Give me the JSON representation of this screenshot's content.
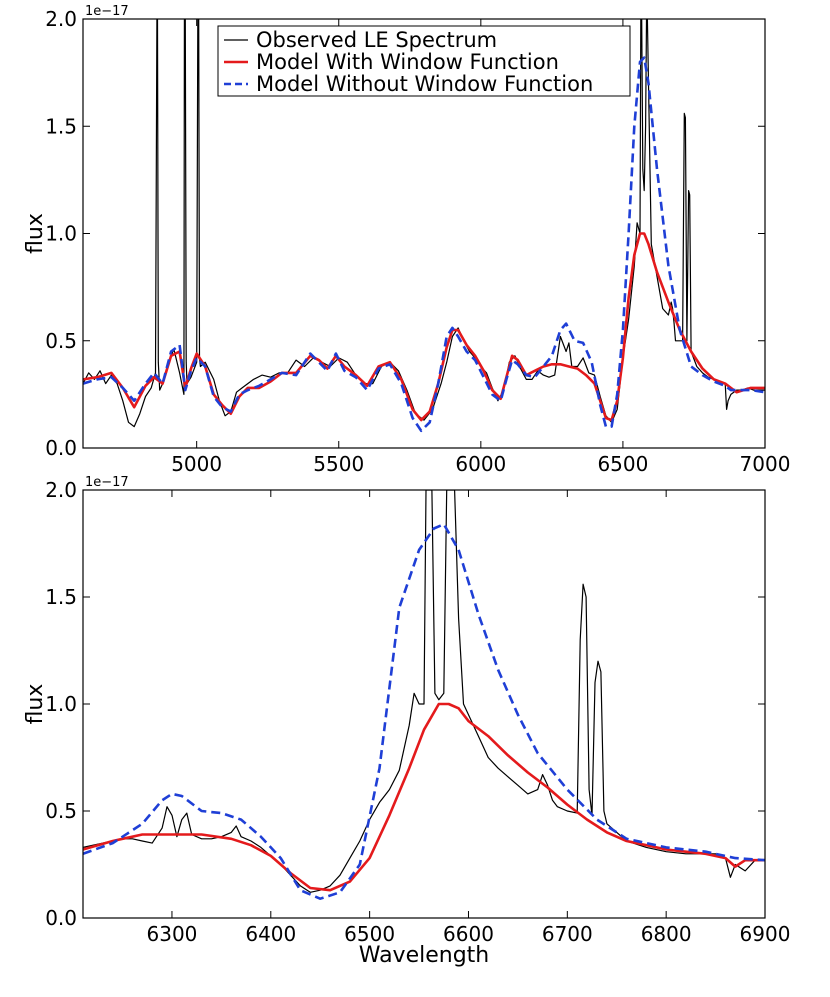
{
  "chart_data": [
    {
      "type": "line",
      "title": "",
      "ylabel": "flux",
      "xlabel": "",
      "y_scale_label": "1e−17",
      "xlim": [
        4600,
        7000
      ],
      "ylim": [
        0.0,
        2.0
      ],
      "xticks": [
        5000,
        5500,
        6000,
        6500,
        7000
      ],
      "yticks": [
        0.0,
        0.5,
        1.0,
        1.5,
        2.0
      ],
      "ytick_labels": [
        "0.0",
        "0.5",
        "1.0",
        "1.5",
        "2.0"
      ],
      "legend": {
        "position": "top-center",
        "entries": [
          "Observed LE Spectrum",
          "Model With Window Function",
          "Model Without Window Function"
        ]
      },
      "series": [
        {
          "name": "Observed LE Spectrum",
          "style": "thin-solid",
          "color": "#000000",
          "x": [
            4600,
            4620,
            4640,
            4660,
            4680,
            4700,
            4720,
            4740,
            4760,
            4780,
            4800,
            4820,
            4840,
            4855,
            4860,
            4862,
            4865,
            4870,
            4880,
            4900,
            4920,
            4940,
            4955,
            4957,
            4960,
            4963,
            4966,
            4980,
            5000,
            5004,
            5007,
            5010,
            5013,
            5030,
            5060,
            5080,
            5100,
            5120,
            5140,
            5160,
            5180,
            5200,
            5230,
            5260,
            5290,
            5320,
            5350,
            5380,
            5410,
            5440,
            5470,
            5500,
            5530,
            5560,
            5590,
            5620,
            5650,
            5680,
            5710,
            5740,
            5770,
            5800,
            5830,
            5860,
            5880,
            5900,
            5920,
            5940,
            5960,
            5980,
            6000,
            6020,
            6040,
            6060,
            6080,
            6100,
            6120,
            6140,
            6160,
            6180,
            6200,
            6220,
            6240,
            6260,
            6280,
            6300,
            6310,
            6320,
            6340,
            6360,
            6380,
            6400,
            6420,
            6440,
            6460,
            6480,
            6500,
            6520,
            6540,
            6550,
            6560,
            6563,
            6566,
            6570,
            6575,
            6580,
            6583,
            6586,
            6590,
            6600,
            6620,
            6640,
            6660,
            6670,
            6675,
            6680,
            6685,
            6700,
            6710,
            6716,
            6720,
            6725,
            6731,
            6735,
            6740,
            6760,
            6780,
            6800,
            6820,
            6840,
            6860,
            6865,
            6870,
            6880,
            6900,
            6920,
            6940,
            6960,
            6980,
            7000
          ],
          "y": [
            0.3,
            0.35,
            0.32,
            0.36,
            0.3,
            0.34,
            0.3,
            0.22,
            0.12,
            0.1,
            0.16,
            0.24,
            0.28,
            0.35,
            2.0,
            2.0,
            0.4,
            0.27,
            0.3,
            0.4,
            0.46,
            0.35,
            0.25,
            2.0,
            2.0,
            0.4,
            0.3,
            0.33,
            0.4,
            2.0,
            2.0,
            0.42,
            0.38,
            0.4,
            0.32,
            0.22,
            0.15,
            0.17,
            0.26,
            0.28,
            0.3,
            0.32,
            0.34,
            0.33,
            0.35,
            0.35,
            0.41,
            0.38,
            0.42,
            0.4,
            0.38,
            0.42,
            0.4,
            0.34,
            0.3,
            0.3,
            0.38,
            0.4,
            0.36,
            0.27,
            0.16,
            0.13,
            0.18,
            0.3,
            0.4,
            0.52,
            0.56,
            0.5,
            0.45,
            0.42,
            0.38,
            0.35,
            0.28,
            0.22,
            0.27,
            0.4,
            0.43,
            0.37,
            0.32,
            0.32,
            0.36,
            0.34,
            0.33,
            0.34,
            0.52,
            0.45,
            0.49,
            0.38,
            0.38,
            0.42,
            0.35,
            0.34,
            0.24,
            0.15,
            0.12,
            0.18,
            0.42,
            0.6,
            0.85,
            1.05,
            1.0,
            2.0,
            2.0,
            1.3,
            1.2,
            1.5,
            2.0,
            2.0,
            1.7,
            0.95,
            0.8,
            0.65,
            0.62,
            0.68,
            0.65,
            0.58,
            0.5,
            0.5,
            0.5,
            1.56,
            1.54,
            0.5,
            1.2,
            1.18,
            0.45,
            0.38,
            0.35,
            0.33,
            0.32,
            0.31,
            0.3,
            0.18,
            0.22,
            0.25,
            0.27,
            0.27,
            0.28,
            0.27,
            0.27,
            0.27
          ]
        },
        {
          "name": "Model With Window Function",
          "style": "thick-solid",
          "color": "#e41a1c",
          "x": [
            4600,
            4650,
            4700,
            4740,
            4780,
            4820,
            4850,
            4880,
            4910,
            4940,
            4960,
            4980,
            5000,
            5030,
            5060,
            5090,
            5120,
            5150,
            5180,
            5220,
            5260,
            5300,
            5350,
            5400,
            5430,
            5460,
            5490,
            5520,
            5560,
            5600,
            5640,
            5680,
            5720,
            5760,
            5790,
            5820,
            5850,
            5880,
            5900,
            5920,
            5950,
            5980,
            6010,
            6040,
            6070,
            6090,
            6110,
            6130,
            6160,
            6190,
            6220,
            6250,
            6280,
            6310,
            6340,
            6370,
            6400,
            6420,
            6440,
            6460,
            6480,
            6500,
            6520,
            6540,
            6560,
            6575,
            6590,
            6620,
            6660,
            6700,
            6740,
            6780,
            6820,
            6860,
            6880,
            6900,
            6950,
            7000
          ],
          "y": [
            0.32,
            0.33,
            0.35,
            0.28,
            0.19,
            0.29,
            0.33,
            0.3,
            0.43,
            0.45,
            0.28,
            0.37,
            0.44,
            0.38,
            0.25,
            0.2,
            0.16,
            0.24,
            0.28,
            0.28,
            0.31,
            0.35,
            0.35,
            0.43,
            0.41,
            0.37,
            0.43,
            0.38,
            0.34,
            0.29,
            0.38,
            0.4,
            0.32,
            0.18,
            0.13,
            0.17,
            0.3,
            0.47,
            0.55,
            0.55,
            0.48,
            0.43,
            0.36,
            0.27,
            0.23,
            0.33,
            0.43,
            0.41,
            0.34,
            0.36,
            0.38,
            0.39,
            0.39,
            0.38,
            0.37,
            0.34,
            0.3,
            0.22,
            0.14,
            0.13,
            0.22,
            0.42,
            0.7,
            0.9,
            1.0,
            1.0,
            0.95,
            0.82,
            0.68,
            0.55,
            0.45,
            0.37,
            0.32,
            0.3,
            0.28,
            0.26,
            0.28,
            0.28
          ]
        },
        {
          "name": "Model Without Window Function",
          "style": "thick-dashed",
          "color": "#1f3fd6",
          "x": [
            4600,
            4650,
            4700,
            4740,
            4780,
            4820,
            4850,
            4880,
            4910,
            4940,
            4960,
            4980,
            5000,
            5030,
            5060,
            5090,
            5120,
            5150,
            5180,
            5220,
            5260,
            5300,
            5350,
            5400,
            5430,
            5460,
            5490,
            5520,
            5560,
            5600,
            5640,
            5680,
            5720,
            5760,
            5790,
            5820,
            5850,
            5880,
            5900,
            5920,
            5950,
            5980,
            6010,
            6040,
            6070,
            6090,
            6110,
            6130,
            6160,
            6190,
            6220,
            6250,
            6280,
            6300,
            6330,
            6360,
            6390,
            6420,
            6440,
            6460,
            6480,
            6500,
            6520,
            6540,
            6560,
            6575,
            6590,
            6620,
            6660,
            6700,
            6740,
            6780,
            6820,
            6860,
            6880,
            6900,
            6950,
            7000
          ],
          "y": [
            0.3,
            0.32,
            0.33,
            0.28,
            0.22,
            0.3,
            0.35,
            0.3,
            0.45,
            0.48,
            0.27,
            0.36,
            0.42,
            0.38,
            0.24,
            0.19,
            0.17,
            0.25,
            0.27,
            0.29,
            0.32,
            0.35,
            0.34,
            0.44,
            0.4,
            0.36,
            0.44,
            0.36,
            0.33,
            0.27,
            0.37,
            0.39,
            0.3,
            0.14,
            0.08,
            0.12,
            0.3,
            0.52,
            0.56,
            0.52,
            0.45,
            0.41,
            0.33,
            0.25,
            0.22,
            0.32,
            0.41,
            0.39,
            0.34,
            0.33,
            0.38,
            0.43,
            0.55,
            0.58,
            0.5,
            0.49,
            0.4,
            0.2,
            0.1,
            0.1,
            0.25,
            0.55,
            1.0,
            1.5,
            1.8,
            1.82,
            1.7,
            1.3,
            0.85,
            0.55,
            0.38,
            0.34,
            0.31,
            0.29,
            0.27,
            0.27,
            0.27,
            0.26
          ]
        }
      ]
    },
    {
      "type": "line",
      "title": "",
      "ylabel": "flux",
      "xlabel": "Wavelength",
      "y_scale_label": "1e−17",
      "xlim": [
        6210,
        6900
      ],
      "ylim": [
        0.0,
        2.0
      ],
      "xticks": [
        6300,
        6400,
        6500,
        6600,
        6700,
        6800,
        6900
      ],
      "yticks": [
        0.0,
        0.5,
        1.0,
        1.5,
        2.0
      ],
      "ytick_labels": [
        "0.0",
        "0.5",
        "1.0",
        "1.5",
        "2.0"
      ],
      "series": [
        {
          "name": "Observed LE Spectrum",
          "style": "thin-solid",
          "color": "#000000",
          "x": [
            6210,
            6230,
            6250,
            6260,
            6270,
            6280,
            6290,
            6295,
            6300,
            6305,
            6310,
            6315,
            6320,
            6330,
            6340,
            6350,
            6360,
            6365,
            6370,
            6380,
            6390,
            6400,
            6410,
            6420,
            6430,
            6440,
            6450,
            6460,
            6470,
            6480,
            6490,
            6500,
            6510,
            6520,
            6530,
            6540,
            6545,
            6550,
            6555,
            6557,
            6560,
            6563,
            6566,
            6570,
            6575,
            6578,
            6580,
            6583,
            6586,
            6590,
            6595,
            6600,
            6610,
            6620,
            6630,
            6640,
            6650,
            6660,
            6670,
            6675,
            6680,
            6685,
            6690,
            6700,
            6710,
            6713,
            6716,
            6719,
            6722,
            6725,
            6728,
            6731,
            6734,
            6737,
            6740,
            6760,
            6780,
            6800,
            6820,
            6840,
            6850,
            6860,
            6865,
            6870,
            6880,
            6890,
            6900
          ],
          "y": [
            0.33,
            0.35,
            0.37,
            0.37,
            0.36,
            0.35,
            0.42,
            0.52,
            0.48,
            0.38,
            0.46,
            0.49,
            0.39,
            0.37,
            0.37,
            0.38,
            0.4,
            0.43,
            0.38,
            0.36,
            0.33,
            0.29,
            0.25,
            0.2,
            0.15,
            0.12,
            0.13,
            0.15,
            0.2,
            0.28,
            0.36,
            0.46,
            0.54,
            0.6,
            0.69,
            0.9,
            1.05,
            1.0,
            1.0,
            2.0,
            2.0,
            2.0,
            1.05,
            1.02,
            1.05,
            2.0,
            2.0,
            2.0,
            2.0,
            1.4,
            1.0,
            0.95,
            0.85,
            0.75,
            0.7,
            0.66,
            0.62,
            0.58,
            0.6,
            0.67,
            0.62,
            0.55,
            0.52,
            0.5,
            0.49,
            1.3,
            1.56,
            1.5,
            0.6,
            0.48,
            1.1,
            1.2,
            1.15,
            0.5,
            0.44,
            0.36,
            0.33,
            0.31,
            0.3,
            0.3,
            0.3,
            0.28,
            0.19,
            0.25,
            0.22,
            0.27,
            0.27
          ]
        },
        {
          "name": "Model With Window Function",
          "style": "thick-solid",
          "color": "#e41a1c",
          "x": [
            6210,
            6240,
            6270,
            6300,
            6330,
            6360,
            6380,
            6400,
            6420,
            6440,
            6460,
            6480,
            6500,
            6520,
            6540,
            6555,
            6570,
            6580,
            6590,
            6600,
            6620,
            6640,
            6660,
            6680,
            6700,
            6720,
            6740,
            6760,
            6780,
            6800,
            6820,
            6840,
            6860,
            6870,
            6880,
            6900
          ],
          "y": [
            0.32,
            0.36,
            0.39,
            0.39,
            0.39,
            0.37,
            0.34,
            0.29,
            0.21,
            0.14,
            0.13,
            0.17,
            0.28,
            0.48,
            0.7,
            0.88,
            1.0,
            1.0,
            0.98,
            0.92,
            0.85,
            0.76,
            0.68,
            0.61,
            0.53,
            0.46,
            0.4,
            0.36,
            0.34,
            0.32,
            0.31,
            0.3,
            0.28,
            0.24,
            0.27,
            0.27
          ]
        },
        {
          "name": "Model Without Window Function",
          "style": "thick-dashed",
          "color": "#1f3fd6",
          "x": [
            6210,
            6240,
            6270,
            6290,
            6300,
            6310,
            6330,
            6350,
            6370,
            6390,
            6410,
            6430,
            6450,
            6470,
            6490,
            6510,
            6530,
            6550,
            6565,
            6575,
            6590,
            6610,
            6630,
            6650,
            6670,
            6700,
            6730,
            6760,
            6800,
            6840,
            6870,
            6900
          ],
          "y": [
            0.3,
            0.35,
            0.44,
            0.55,
            0.58,
            0.57,
            0.5,
            0.49,
            0.46,
            0.38,
            0.28,
            0.13,
            0.09,
            0.12,
            0.25,
            0.7,
            1.45,
            1.72,
            1.82,
            1.84,
            1.72,
            1.42,
            1.16,
            0.95,
            0.77,
            0.6,
            0.46,
            0.37,
            0.33,
            0.31,
            0.28,
            0.27
          ]
        }
      ]
    }
  ]
}
